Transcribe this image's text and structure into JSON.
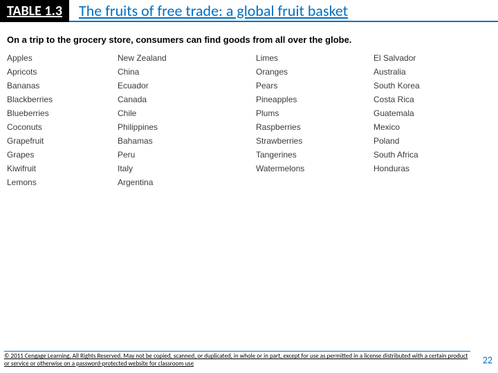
{
  "header": {
    "table_label": "TABLE 1.3",
    "title": "The fruits of free trade: a global fruit basket"
  },
  "subtitle": "On a trip to the grocery store, consumers can find goods from all over the globe.",
  "columns": {
    "fruit1": [
      "Apples",
      "Apricots",
      "Bananas",
      "Blackberries",
      "Blueberries",
      "Coconuts",
      "Grapefruit",
      "Grapes",
      "Kiwifruit",
      "Lemons"
    ],
    "country1": [
      "New Zealand",
      "China",
      "Ecuador",
      "Canada",
      "Chile",
      "Philippines",
      "Bahamas",
      "Peru",
      "Italy",
      "Argentina"
    ],
    "fruit2": [
      "Limes",
      "Oranges",
      "Pears",
      "Pineapples",
      "Plums",
      "Raspberries",
      "Strawberries",
      "Tangerines",
      "Watermelons"
    ],
    "country2": [
      "El Salvador",
      "Australia",
      "South Korea",
      "Costa Rica",
      "Guatemala",
      "Mexico",
      "Poland",
      "South Africa",
      "Honduras"
    ]
  },
  "footer": {
    "copyright": "© 2011 Cengage Learning. All Rights Reserved. May not be copied, scanned, or duplicated, in whole or in part, except for use as permitted in a license distributed with a certain product or service or otherwise on a password-protected website for classroom use",
    "page_number": "22"
  },
  "colors": {
    "accent": "#0070c0",
    "text": "#3a3a3a",
    "black": "#000000",
    "white": "#ffffff"
  }
}
